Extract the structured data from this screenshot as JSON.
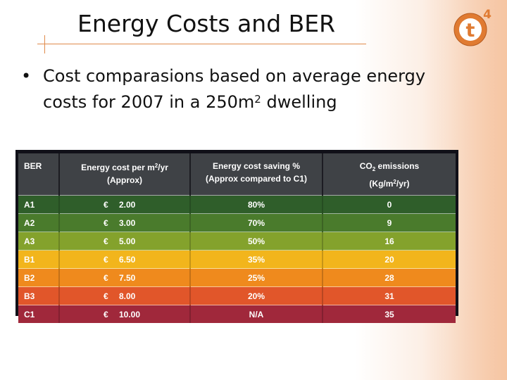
{
  "slide": {
    "title": "Energy Costs and BER",
    "bullet_line1": "Cost comparasions based on average energy",
    "bullet_line2_pre": "costs for 2007 in a 250m",
    "bullet_line2_sup": "2",
    "bullet_line2_post": " dwelling"
  },
  "logo": {
    "letter": "t",
    "superscript": "4",
    "color": "#e07b32"
  },
  "table": {
    "headers": {
      "ber": "BER",
      "cost_l1_pre": "Energy cost per m",
      "cost_l1_sup": "2",
      "cost_l1_post": "/yr",
      "cost_l2": "(Approx)",
      "saving_l1": "Energy cost saving %",
      "saving_l2": "(Approx compared to C1)",
      "co2_l1_pre": "CO",
      "co2_l1_sub": "2",
      "co2_l1_post": " emissions",
      "co2_l2_pre": "(Kg/m",
      "co2_l2_sup": "2",
      "co2_l2_post": "/yr)"
    },
    "currency": "€",
    "rows": [
      {
        "ber": "A1",
        "cost": "2.00",
        "saving": "80%",
        "co2": "0",
        "color": "#2f5e2a"
      },
      {
        "ber": "A2",
        "cost": "3.00",
        "saving": "70%",
        "co2": "9",
        "color": "#4a7b2c"
      },
      {
        "ber": "A3",
        "cost": "5.00",
        "saving": "50%",
        "co2": "16",
        "color": "#84a22c"
      },
      {
        "ber": "B1",
        "cost": "6.50",
        "saving": "35%",
        "co2": "20",
        "color": "#f2b51c"
      },
      {
        "ber": "B2",
        "cost": "7.50",
        "saving": "25%",
        "co2": "28",
        "color": "#ef8a1d"
      },
      {
        "ber": "B3",
        "cost": "8.00",
        "saving": "20%",
        "co2": "31",
        "color": "#e1562a"
      },
      {
        "ber": "C1",
        "cost": "10.00",
        "saving": "N/A",
        "co2": "35",
        "color": "#a0283b"
      }
    ]
  }
}
